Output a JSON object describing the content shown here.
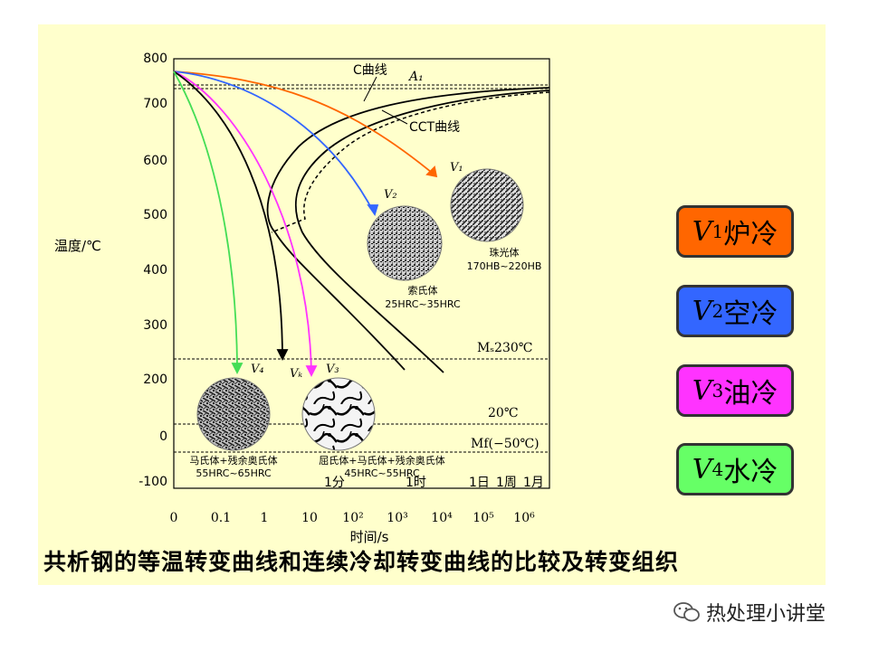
{
  "diagram": {
    "y_axis": {
      "label": "温度/℃",
      "ticks": [
        "800",
        "700",
        "600",
        "500",
        "400",
        "300",
        "200",
        "0",
        "-100"
      ]
    },
    "x_axis": {
      "label": "时间/s",
      "ticks": [
        "0",
        "0.1",
        "1",
        "10",
        "10²",
        "10³",
        "10⁴",
        "10⁵",
        "10⁶"
      ],
      "time_marks": [
        "1分",
        "1时",
        "1日",
        "1周",
        "1月"
      ]
    },
    "curve_labels": {
      "c_curve": "C曲线",
      "cct_curve": "CCT曲线"
    },
    "reference_lines": {
      "a1": "A₁",
      "ms": "Mₛ230℃",
      "room_temp": "20℃",
      "mf": "Mf(−50℃)"
    },
    "cooling_curves": [
      {
        "key": "V1",
        "label": "V₁",
        "color": "#ff6600"
      },
      {
        "key": "V2",
        "label": "V₂",
        "color": "#3366ff"
      },
      {
        "key": "V3",
        "label": "V₃",
        "color": "#ff33ff"
      },
      {
        "key": "VK",
        "label": "Vₖ",
        "color": "#000000"
      },
      {
        "key": "V4",
        "label": "V₄",
        "color": "#44dd55"
      }
    ],
    "microstructures": [
      {
        "name": "珠光体",
        "hardness": "170HB~220HB"
      },
      {
        "name": "索氏体",
        "hardness": "25HRC~35HRC"
      },
      {
        "name": "马氏体+残余奥氏体",
        "hardness": "55HRC~65HRC"
      },
      {
        "name": "屈氏体+马氏体+残余奥氏体",
        "hardness": "45HRC~55HRC"
      }
    ]
  },
  "legend": [
    {
      "v": "V",
      "sub": "1",
      "text": "炉冷",
      "color": "#ff6600"
    },
    {
      "v": "V",
      "sub": "2",
      "text": "空冷",
      "color": "#3366ff"
    },
    {
      "v": "V",
      "sub": "3",
      "text": "油冷",
      "color": "#ff33ff"
    },
    {
      "v": "V",
      "sub": "4",
      "text": "水冷",
      "color": "#66ff66"
    }
  ],
  "caption": "共析钢的等温转变曲线和连续冷却转变曲线的比较及转变组织",
  "watermark": "热处理小讲堂"
}
